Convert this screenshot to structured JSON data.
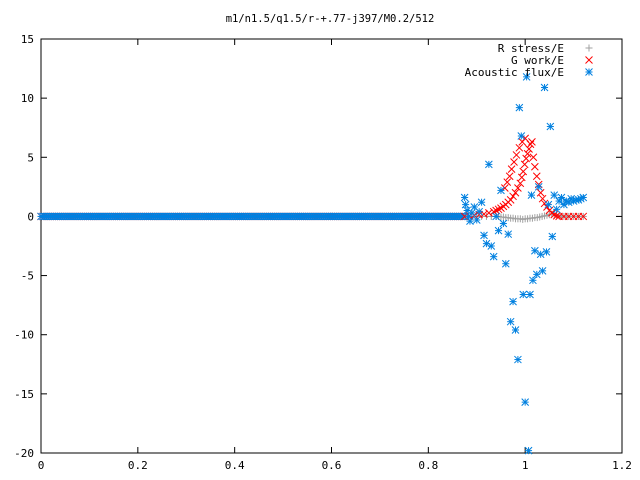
{
  "chart_data": {
    "type": "scatter",
    "title": "m1/n1.5/q1.5/r-+.77-j397/M0.2/512",
    "xlabel": "",
    "ylabel": "",
    "xlim": [
      0,
      1.2
    ],
    "ylim": [
      -20,
      15
    ],
    "x_ticks": [
      "0",
      "0.2",
      "0.4",
      "0.6",
      "0.8",
      "1",
      "1.2"
    ],
    "y_ticks": [
      "15",
      "10",
      "5",
      "0",
      "-5",
      "-10",
      "-15",
      "-20"
    ],
    "x_tick_values": [
      0,
      0.2,
      0.4,
      0.6,
      0.8,
      1.0,
      1.2
    ],
    "y_tick_values": [
      15,
      10,
      5,
      0,
      -5,
      -10,
      -15,
      -20
    ],
    "grid": false,
    "legend_position": "top-right",
    "series": [
      {
        "name": "R stress/E",
        "marker": "plus",
        "color": "#a0a0a0",
        "points": [
          [
            0.88,
            0.0
          ],
          [
            0.89,
            0.0
          ],
          [
            0.9,
            0.0
          ],
          [
            0.91,
            0.0
          ],
          [
            0.92,
            0.0
          ],
          [
            0.93,
            0.0
          ],
          [
            0.94,
            0.0
          ],
          [
            0.945,
            0.0
          ],
          [
            0.95,
            -0.05
          ],
          [
            0.955,
            -0.05
          ],
          [
            0.96,
            -0.1
          ],
          [
            0.965,
            -0.1
          ],
          [
            0.97,
            -0.15
          ],
          [
            0.975,
            -0.15
          ],
          [
            0.98,
            -0.2
          ],
          [
            0.985,
            -0.2
          ],
          [
            0.99,
            -0.2
          ],
          [
            0.995,
            -0.25
          ],
          [
            1.0,
            -0.2
          ],
          [
            1.005,
            -0.2
          ],
          [
            1.01,
            -0.15
          ],
          [
            1.015,
            -0.15
          ],
          [
            1.02,
            -0.1
          ],
          [
            1.025,
            -0.1
          ],
          [
            1.03,
            -0.05
          ],
          [
            1.035,
            0.0
          ],
          [
            1.04,
            0.05
          ],
          [
            1.045,
            0.1
          ],
          [
            1.05,
            0.15
          ],
          [
            1.055,
            0.2
          ],
          [
            1.06,
            0.15
          ],
          [
            1.065,
            0.1
          ],
          [
            1.07,
            0.05
          ],
          [
            1.075,
            0.0
          ],
          [
            1.08,
            0.0
          ],
          [
            1.085,
            0.0
          ],
          [
            1.09,
            0.0
          ],
          [
            1.1,
            0.0
          ],
          [
            1.11,
            0.0
          ],
          [
            1.12,
            0.0
          ]
        ]
      },
      {
        "name": "G work/E",
        "marker": "cross",
        "color": "#ff0000",
        "points": [
          [
            0.875,
            0.0
          ],
          [
            0.885,
            0.05
          ],
          [
            0.895,
            0.1
          ],
          [
            0.905,
            0.15
          ],
          [
            0.915,
            0.2
          ],
          [
            0.925,
            0.3
          ],
          [
            0.935,
            0.4
          ],
          [
            0.94,
            0.5
          ],
          [
            0.945,
            0.6
          ],
          [
            0.95,
            0.7
          ],
          [
            0.955,
            0.85
          ],
          [
            0.96,
            1.0
          ],
          [
            0.965,
            1.2
          ],
          [
            0.97,
            1.4
          ],
          [
            0.975,
            1.7
          ],
          [
            0.98,
            2.0
          ],
          [
            0.985,
            2.4
          ],
          [
            0.99,
            2.8
          ],
          [
            0.993,
            3.3
          ],
          [
            0.996,
            3.8
          ],
          [
            0.999,
            4.4
          ],
          [
            1.002,
            4.9
          ],
          [
            1.005,
            5.3
          ],
          [
            1.008,
            5.7
          ],
          [
            1.011,
            6.1
          ],
          [
            1.014,
            6.3
          ],
          [
            1.0,
            6.6
          ],
          [
            0.994,
            6.3
          ],
          [
            0.988,
            5.8
          ],
          [
            0.982,
            5.2
          ],
          [
            0.977,
            4.6
          ],
          [
            0.972,
            4.0
          ],
          [
            0.968,
            3.4
          ],
          [
            0.963,
            2.9
          ],
          [
            0.958,
            2.4
          ],
          [
            1.017,
            5.0
          ],
          [
            1.02,
            4.2
          ],
          [
            1.024,
            3.4
          ],
          [
            1.028,
            2.7
          ],
          [
            1.032,
            2.0
          ],
          [
            1.036,
            1.5
          ],
          [
            1.04,
            1.1
          ],
          [
            1.045,
            0.8
          ],
          [
            1.05,
            0.5
          ],
          [
            1.055,
            0.3
          ],
          [
            1.06,
            0.15
          ],
          [
            1.065,
            0.05
          ],
          [
            1.07,
            0.0
          ],
          [
            1.08,
            0.0
          ],
          [
            1.09,
            0.0
          ],
          [
            1.1,
            0.0
          ],
          [
            1.11,
            0.0
          ],
          [
            1.12,
            0.0
          ]
        ]
      },
      {
        "name": "Acoustic flux/E",
        "marker": "star",
        "color": "#0080e0",
        "points": [
          [
            0.875,
            1.6
          ],
          [
            0.877,
            1.0
          ],
          [
            0.88,
            0.5
          ],
          [
            0.883,
            0.0
          ],
          [
            0.886,
            -0.4
          ],
          [
            0.89,
            0.3
          ],
          [
            0.895,
            0.8
          ],
          [
            0.9,
            -0.3
          ],
          [
            0.905,
            0.4
          ],
          [
            0.91,
            1.2
          ],
          [
            0.915,
            -1.6
          ],
          [
            0.92,
            -2.3
          ],
          [
            0.925,
            4.4
          ],
          [
            0.93,
            -2.5
          ],
          [
            0.935,
            -3.4
          ],
          [
            0.94,
            0.0
          ],
          [
            0.945,
            -1.2
          ],
          [
            0.95,
            2.2
          ],
          [
            0.955,
            -0.6
          ],
          [
            0.96,
            -4.0
          ],
          [
            0.965,
            -1.5
          ],
          [
            0.97,
            -8.9
          ],
          [
            0.975,
            -7.2
          ],
          [
            0.98,
            -9.6
          ],
          [
            0.985,
            -12.1
          ],
          [
            0.988,
            9.2
          ],
          [
            0.992,
            6.8
          ],
          [
            0.996,
            -6.6
          ],
          [
            1.0,
            -15.7
          ],
          [
            1.003,
            11.8
          ],
          [
            1.007,
            -19.8
          ],
          [
            1.01,
            -6.6
          ],
          [
            1.013,
            1.8
          ],
          [
            1.016,
            -5.4
          ],
          [
            1.02,
            -2.9
          ],
          [
            1.024,
            -4.9
          ],
          [
            1.028,
            2.5
          ],
          [
            1.032,
            -3.2
          ],
          [
            1.036,
            -4.6
          ],
          [
            1.04,
            10.9
          ],
          [
            1.044,
            -3.0
          ],
          [
            1.048,
            1.0
          ],
          [
            1.052,
            7.6
          ],
          [
            1.056,
            -1.7
          ],
          [
            1.06,
            1.8
          ],
          [
            1.065,
            0.6
          ],
          [
            1.07,
            1.3
          ],
          [
            1.075,
            1.6
          ],
          [
            1.08,
            1.0
          ],
          [
            1.085,
            1.3
          ],
          [
            1.09,
            1.2
          ],
          [
            1.095,
            1.5
          ],
          [
            1.1,
            1.3
          ],
          [
            1.105,
            1.4
          ],
          [
            1.11,
            1.4
          ],
          [
            1.115,
            1.5
          ],
          [
            1.12,
            1.6
          ]
        ]
      }
    ]
  }
}
